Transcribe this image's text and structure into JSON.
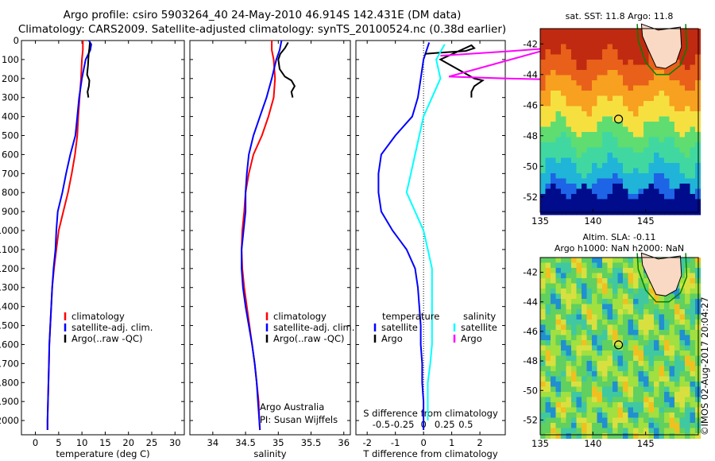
{
  "title_line1": "Argo profile: csiro 5903264_40 24-May-2010 46.914S 142.431E (DM data)",
  "title_line2": "Climatology: CARS2009. Satellite-adjusted climatology: synTS_20100524.nc (0.38d earlier)",
  "stamp": "©IMOS 02-Aug-2017 20:04:27",
  "colors": {
    "climatology": "#ff0000",
    "satellite": "#0000ff",
    "argo": "#000000",
    "sal_satellite": "#00ffff",
    "sal_argo": "#ff00ff",
    "coast": "#008000"
  },
  "chart_data": [
    {
      "type": "line",
      "xlabel": "temperature (deg C)",
      "ylabel": "",
      "xlim": [
        -3,
        32
      ],
      "ylim": [
        2075,
        0
      ],
      "xticks": [
        0,
        5,
        10,
        15,
        20,
        25,
        30
      ],
      "yticks": [
        0,
        100,
        200,
        300,
        400,
        500,
        600,
        700,
        800,
        900,
        1000,
        1100,
        1200,
        1300,
        1400,
        1500,
        1600,
        1700,
        1800,
        1900,
        2000
      ],
      "legend": [
        "climatology",
        "satellite-adj. clim.",
        "Argo(..raw -QC)"
      ],
      "series": [
        {
          "name": "climatology",
          "color": "#ff0000",
          "points": [
            [
              10.2,
              0
            ],
            [
              10.2,
              50
            ],
            [
              10,
              100
            ],
            [
              9.8,
              200
            ],
            [
              9.5,
              300
            ],
            [
              9.2,
              400
            ],
            [
              9,
              500
            ],
            [
              8.5,
              600
            ],
            [
              7.8,
              700
            ],
            [
              7,
              800
            ],
            [
              6,
              900
            ],
            [
              5,
              1000
            ],
            [
              4.5,
              1100
            ],
            [
              4,
              1200
            ],
            [
              3.6,
              1300
            ],
            [
              3.4,
              1400
            ],
            [
              3.2,
              1500
            ],
            [
              3,
              1600
            ],
            [
              2.9,
              1700
            ],
            [
              2.8,
              1800
            ],
            [
              2.7,
              1900
            ],
            [
              2.6,
              2000
            ],
            [
              2.6,
              2050
            ]
          ]
        },
        {
          "name": "satellite-adj. clim.",
          "color": "#0000ff",
          "points": [
            [
              11.5,
              0
            ],
            [
              12,
              20
            ],
            [
              11.8,
              50
            ],
            [
              10.8,
              100
            ],
            [
              10,
              200
            ],
            [
              9.4,
              300
            ],
            [
              9,
              400
            ],
            [
              8.6,
              500
            ],
            [
              7.5,
              600
            ],
            [
              6.6,
              700
            ],
            [
              5.8,
              800
            ],
            [
              4.8,
              900
            ],
            [
              4.5,
              1000
            ],
            [
              4.3,
              1100
            ],
            [
              3.9,
              1200
            ],
            [
              3.6,
              1300
            ],
            [
              3.4,
              1400
            ],
            [
              3.2,
              1500
            ],
            [
              3,
              1600
            ],
            [
              2.9,
              1700
            ],
            [
              2.8,
              1800
            ],
            [
              2.7,
              1900
            ],
            [
              2.6,
              2000
            ],
            [
              2.6,
              2050
            ]
          ]
        },
        {
          "name": "Argo(..raw -QC)",
          "color": "#000000",
          "points": [
            [
              11.7,
              10
            ],
            [
              11.6,
              40
            ],
            [
              11.5,
              60
            ],
            [
              11.4,
              90
            ],
            [
              11.3,
              130
            ],
            [
              11.1,
              180
            ],
            [
              11.6,
              210
            ],
            [
              11.5,
              240
            ],
            [
              11.2,
              270
            ],
            [
              11.4,
              300
            ]
          ]
        }
      ]
    },
    {
      "type": "line",
      "xlabel": "salinity",
      "ylabel": "",
      "xlim": [
        33.65,
        36.1
      ],
      "ylim": [
        2075,
        0
      ],
      "xticks": [
        34,
        34.5,
        35,
        35.5,
        36
      ],
      "legend": [
        "climatology",
        "satellite-adj. clim.",
        "Argo(..raw -QC)"
      ],
      "annotations": [
        "Argo Australia",
        "PI: Susan Wijffels"
      ],
      "series": [
        {
          "name": "climatology",
          "color": "#ff0000",
          "points": [
            [
              34.9,
              0
            ],
            [
              34.9,
              50
            ],
            [
              34.93,
              100
            ],
            [
              34.95,
              200
            ],
            [
              34.93,
              300
            ],
            [
              34.85,
              400
            ],
            [
              34.75,
              500
            ],
            [
              34.62,
              600
            ],
            [
              34.55,
              700
            ],
            [
              34.5,
              800
            ],
            [
              34.48,
              900
            ],
            [
              34.45,
              1000
            ],
            [
              34.44,
              1100
            ],
            [
              34.45,
              1200
            ],
            [
              34.48,
              1300
            ],
            [
              34.52,
              1400
            ],
            [
              34.56,
              1500
            ],
            [
              34.6,
              1600
            ],
            [
              34.64,
              1700
            ],
            [
              34.67,
              1800
            ],
            [
              34.7,
              1900
            ],
            [
              34.71,
              2000
            ],
            [
              34.72,
              2050
            ]
          ]
        },
        {
          "name": "satellite-adj. clim.",
          "color": "#0000ff",
          "points": [
            [
              35.05,
              0
            ],
            [
              35.02,
              50
            ],
            [
              34.97,
              100
            ],
            [
              34.9,
              200
            ],
            [
              34.82,
              300
            ],
            [
              34.72,
              400
            ],
            [
              34.62,
              500
            ],
            [
              34.55,
              600
            ],
            [
              34.52,
              700
            ],
            [
              34.5,
              800
            ],
            [
              34.5,
              900
            ],
            [
              34.47,
              1000
            ],
            [
              34.44,
              1100
            ],
            [
              34.44,
              1200
            ],
            [
              34.46,
              1300
            ],
            [
              34.5,
              1400
            ],
            [
              34.55,
              1500
            ],
            [
              34.6,
              1600
            ],
            [
              34.64,
              1700
            ],
            [
              34.67,
              1800
            ],
            [
              34.69,
              1900
            ],
            [
              34.71,
              2000
            ],
            [
              34.72,
              2050
            ]
          ]
        },
        {
          "name": "Argo(..raw -QC)",
          "color": "#000000",
          "points": [
            [
              35.15,
              10
            ],
            [
              35.1,
              40
            ],
            [
              35.03,
              70
            ],
            [
              35.0,
              100
            ],
            [
              35.02,
              150
            ],
            [
              35.1,
              190
            ],
            [
              35.2,
              210
            ],
            [
              35.25,
              240
            ],
            [
              35.2,
              270
            ],
            [
              35.22,
              300
            ]
          ]
        }
      ]
    },
    {
      "type": "line",
      "xlabel": "T difference from climatology",
      "x2label": "S difference from climatology",
      "xlim": [
        -2.4,
        2.9
      ],
      "ylim": [
        2075,
        0
      ],
      "xticks": [
        -2,
        -1,
        0,
        1,
        2
      ],
      "x2ticks": [
        "-0.5",
        "-0.25",
        "0",
        "0.25",
        "0.5"
      ],
      "legend_headers": [
        "temperature",
        "salinity"
      ],
      "legend": [
        "satellite",
        "Argo",
        "satellite",
        "Argo"
      ],
      "series": [
        {
          "name": "satellite",
          "quantity": "temperature",
          "color": "#0000ff",
          "points": [
            [
              0.2,
              10
            ],
            [
              0,
              100
            ],
            [
              -0.1,
              200
            ],
            [
              -0.2,
              300
            ],
            [
              -0.4,
              400
            ],
            [
              -1,
              500
            ],
            [
              -1.5,
              600
            ],
            [
              -1.6,
              700
            ],
            [
              -1.6,
              800
            ],
            [
              -1.5,
              900
            ],
            [
              -1.1,
              1000
            ],
            [
              -0.6,
              1100
            ],
            [
              -0.3,
              1200
            ],
            [
              -0.2,
              1300
            ],
            [
              -0.15,
              1400
            ],
            [
              -0.1,
              1500
            ],
            [
              -0.1,
              1600
            ],
            [
              -0.05,
              1700
            ],
            [
              -0.05,
              1800
            ],
            [
              0,
              1900
            ],
            [
              0,
              2000
            ],
            [
              0,
              2050
            ]
          ]
        },
        {
          "name": "Argo",
          "quantity": "temperature",
          "color": "#000000",
          "points": [
            [
              0.05,
              70
            ],
            [
              0.5,
              65
            ],
            [
              1.5,
              55
            ],
            [
              1.8,
              40
            ],
            [
              1.7,
              25
            ],
            [
              0.6,
              100
            ],
            [
              1.8,
              200
            ],
            [
              2.1,
              210
            ],
            [
              1.8,
              240
            ],
            [
              1.7,
              270
            ],
            [
              1.7,
              300
            ]
          ]
        },
        {
          "name": "satellite",
          "quantity": "salinity",
          "color": "#00ffff",
          "points": [
            [
              0.25,
              20
            ],
            [
              0.15,
              100
            ],
            [
              0.2,
              200
            ],
            [
              0.1,
              300
            ],
            [
              0,
              400
            ],
            [
              -0.05,
              500
            ],
            [
              -0.1,
              600
            ],
            [
              -0.15,
              700
            ],
            [
              -0.2,
              800
            ],
            [
              -0.1,
              900
            ],
            [
              0,
              1000
            ],
            [
              0.05,
              1100
            ],
            [
              0.1,
              1200
            ],
            [
              0.1,
              1300
            ],
            [
              0.1,
              1400
            ],
            [
              0.1,
              1500
            ],
            [
              0.1,
              1600
            ],
            [
              0.08,
              1700
            ],
            [
              0.05,
              1800
            ],
            [
              0.05,
              1900
            ],
            [
              0.05,
              2000
            ]
          ]
        },
        {
          "name": "Argo",
          "quantity": "salinity",
          "color": "#ff00ff",
          "points": [
            [
              0.2,
              80
            ],
            [
              0.9,
              60
            ],
            [
              1.5,
              40
            ],
            [
              1.6,
              30
            ],
            [
              0.3,
              190
            ],
            [
              1.0,
              200
            ],
            [
              1.5,
              205
            ],
            [
              1.4,
              250
            ],
            [
              1.4,
              300
            ]
          ]
        }
      ]
    },
    {
      "type": "heatmap",
      "title": "sat. SST: 11.8 Argo: 11.8",
      "xlim": [
        135,
        150
      ],
      "ylim": [
        -53,
        -41
      ],
      "xticks": [
        135,
        140,
        145
      ],
      "yticks": [
        -42,
        -44,
        -46,
        -48,
        -50,
        -52
      ],
      "marker": [
        142.431,
        -46.914
      ]
    },
    {
      "type": "heatmap",
      "title": "Altim. SLA: -0.11",
      "subtitle": "Argo h1000: NaN h2000: NaN",
      "xlim": [
        135,
        150
      ],
      "ylim": [
        -53,
        -41
      ],
      "xticks": [
        135,
        140,
        145
      ],
      "yticks": [
        -42,
        -44,
        -46,
        -48,
        -50,
        -52
      ],
      "marker": [
        142.431,
        -46.914
      ]
    }
  ]
}
